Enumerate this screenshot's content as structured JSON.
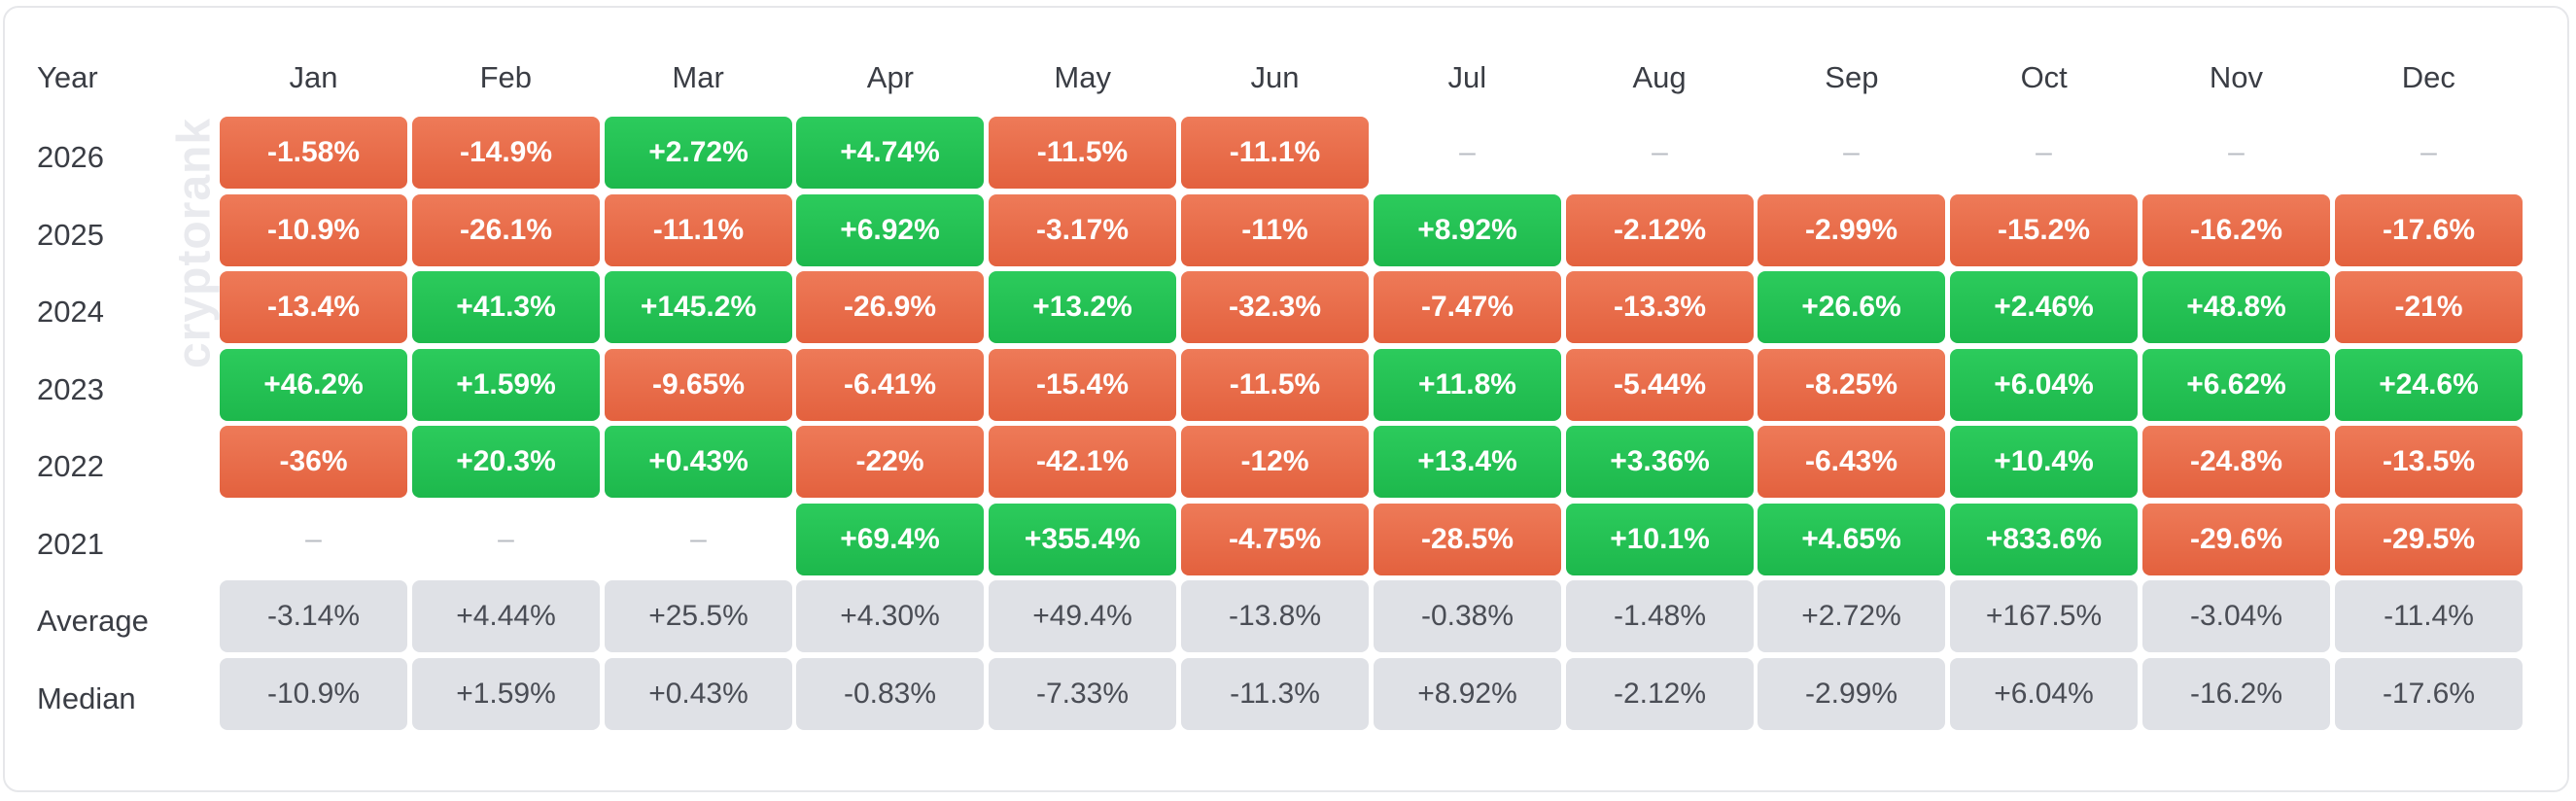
{
  "chart_data": {
    "type": "table",
    "watermark": "cryptorank",
    "corner_label": "Year",
    "months": [
      "Jan",
      "Feb",
      "Mar",
      "Apr",
      "May",
      "Jun",
      "Jul",
      "Aug",
      "Sep",
      "Oct",
      "Nov",
      "Dec"
    ],
    "rows": [
      {
        "label": "2026",
        "kind": "year",
        "cells": [
          "-1.58%",
          "-14.9%",
          "+2.72%",
          "+4.74%",
          "-11.5%",
          "-11.1%",
          "–",
          "–",
          "–",
          "–",
          "–",
          "–"
        ]
      },
      {
        "label": "2025",
        "kind": "year",
        "cells": [
          "-10.9%",
          "-26.1%",
          "-11.1%",
          "+6.92%",
          "-3.17%",
          "-11%",
          "+8.92%",
          "-2.12%",
          "-2.99%",
          "-15.2%",
          "-16.2%",
          "-17.6%"
        ]
      },
      {
        "label": "2024",
        "kind": "year",
        "cells": [
          "-13.4%",
          "+41.3%",
          "+145.2%",
          "-26.9%",
          "+13.2%",
          "-32.3%",
          "-7.47%",
          "-13.3%",
          "+26.6%",
          "+2.46%",
          "+48.8%",
          "-21%"
        ]
      },
      {
        "label": "2023",
        "kind": "year",
        "cells": [
          "+46.2%",
          "+1.59%",
          "-9.65%",
          "-6.41%",
          "-15.4%",
          "-11.5%",
          "+11.8%",
          "-5.44%",
          "-8.25%",
          "+6.04%",
          "+6.62%",
          "+24.6%"
        ]
      },
      {
        "label": "2022",
        "kind": "year",
        "cells": [
          "-36%",
          "+20.3%",
          "+0.43%",
          "-22%",
          "-42.1%",
          "-12%",
          "+13.4%",
          "+3.36%",
          "-6.43%",
          "+10.4%",
          "-24.8%",
          "-13.5%"
        ]
      },
      {
        "label": "2021",
        "kind": "year",
        "cells": [
          "–",
          "–",
          "–",
          "+69.4%",
          "+355.4%",
          "-4.75%",
          "-28.5%",
          "+10.1%",
          "+4.65%",
          "+833.6%",
          "-29.6%",
          "-29.5%"
        ]
      },
      {
        "label": "Average",
        "kind": "stat",
        "cells": [
          "-3.14%",
          "+4.44%",
          "+25.5%",
          "+4.30%",
          "+49.4%",
          "-13.8%",
          "-0.38%",
          "-1.48%",
          "+2.72%",
          "+167.5%",
          "-3.04%",
          "-11.4%"
        ]
      },
      {
        "label": "Median",
        "kind": "stat",
        "cells": [
          "-10.9%",
          "+1.59%",
          "+0.43%",
          "-0.83%",
          "-7.33%",
          "-11.3%",
          "+8.92%",
          "-2.12%",
          "-2.99%",
          "+6.04%",
          "-16.2%",
          "-17.6%"
        ]
      }
    ],
    "colors": {
      "positive": "#22c55e",
      "negative": "#e8694a",
      "stat": "#dfe1e6",
      "empty": "#b9bcc3"
    }
  }
}
